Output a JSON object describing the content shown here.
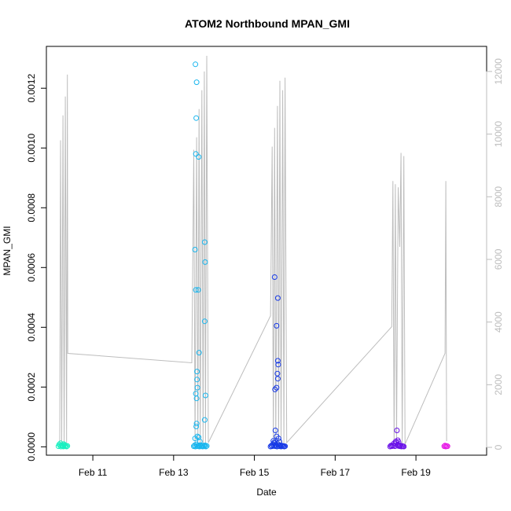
{
  "chart_data": {
    "type": "scatter",
    "title": "ATOM2 Northbound MPAN_GMI",
    "xlabel": "Date",
    "ylabel": "MPAN_GMI",
    "x_unit": "days",
    "xlim": [
      9.85,
      20.75
    ],
    "x_ticks": [
      {
        "x": 11,
        "label": "Feb 11"
      },
      {
        "x": 13,
        "label": "Feb 13"
      },
      {
        "x": 15,
        "label": "Feb 15"
      },
      {
        "x": 17,
        "label": "Feb 17"
      },
      {
        "x": 19,
        "label": "Feb 19"
      }
    ],
    "ylim": [
      -2.8e-05,
      0.00134
    ],
    "y_ticks": [
      0.0,
      0.0002,
      0.0004,
      0.0006,
      0.0008,
      0.001,
      0.0012
    ],
    "y_tick_labels": [
      "0.0000",
      "0.0002",
      "0.0004",
      "0.0006",
      "0.0008",
      "0.0010",
      "0.0012"
    ],
    "y2lim": [
      -250,
      12800
    ],
    "y2_ticks": [
      0,
      2000,
      4000,
      6000,
      8000,
      10000,
      12000
    ],
    "y2_tick_labels": [
      "0",
      "2000",
      "4000",
      "6000",
      "8000",
      "10000",
      "12000"
    ],
    "line_series": {
      "color": "#bdbdbd",
      "points": [
        [
          10.18,
          100
        ],
        [
          10.2,
          9800
        ],
        [
          10.23,
          100
        ],
        [
          10.26,
          10600
        ],
        [
          10.29,
          100
        ],
        [
          10.32,
          11200
        ],
        [
          10.35,
          100
        ],
        [
          10.37,
          11900
        ],
        [
          10.38,
          3000
        ],
        [
          13.45,
          2700
        ],
        [
          13.5,
          9500
        ],
        [
          13.53,
          100
        ],
        [
          13.57,
          9900
        ],
        [
          13.6,
          100
        ],
        [
          13.63,
          10800
        ],
        [
          13.66,
          100
        ],
        [
          13.7,
          11400
        ],
        [
          13.73,
          100
        ],
        [
          13.76,
          12000
        ],
        [
          13.79,
          100
        ],
        [
          13.82,
          12500
        ],
        [
          13.86,
          150
        ],
        [
          15.4,
          4200
        ],
        [
          15.44,
          9600
        ],
        [
          15.47,
          100
        ],
        [
          15.5,
          10200
        ],
        [
          15.53,
          100
        ],
        [
          15.57,
          10900
        ],
        [
          15.6,
          100
        ],
        [
          15.63,
          11700
        ],
        [
          15.66,
          100
        ],
        [
          15.7,
          11400
        ],
        [
          15.73,
          100
        ],
        [
          15.76,
          11800
        ],
        [
          15.8,
          150
        ],
        [
          18.4,
          3850
        ],
        [
          18.43,
          8500
        ],
        [
          18.46,
          100
        ],
        [
          18.49,
          8400
        ],
        [
          18.52,
          100
        ],
        [
          18.56,
          8300
        ],
        [
          18.6,
          6400
        ],
        [
          18.63,
          9400
        ],
        [
          18.66,
          100
        ],
        [
          18.7,
          9300
        ],
        [
          18.73,
          100
        ],
        [
          19.72,
          3000
        ],
        [
          19.74,
          8500
        ],
        [
          19.76,
          200
        ]
      ]
    },
    "point_series": [
      {
        "color": "#19f0c0",
        "points": [
          [
            10.15,
            2e-06
          ],
          [
            10.17,
            8e-06
          ],
          [
            10.19,
            4e-06
          ],
          [
            10.21,
            1e-06
          ],
          [
            10.23,
            5e-06
          ],
          [
            10.25,
            3e-06
          ],
          [
            10.27,
            1e-06
          ],
          [
            10.29,
            6e-06
          ],
          [
            10.31,
            2e-06
          ],
          [
            10.33,
            4e-06
          ],
          [
            10.35,
            1e-06
          ],
          [
            10.37,
            3e-06
          ],
          [
            10.2,
            1.2e-05
          ],
          [
            10.28,
            9e-06
          ]
        ]
      },
      {
        "color": "#1ab6ee",
        "points": [
          [
            13.5,
            2e-06
          ],
          [
            13.52,
            5e-06
          ],
          [
            13.54,
            1e-06
          ],
          [
            13.56,
            8e-06
          ],
          [
            13.58,
            3e-06
          ],
          [
            13.6,
            2e-06
          ],
          [
            13.62,
            4e-06
          ],
          [
            13.64,
            1e-06
          ],
          [
            13.66,
            6e-06
          ],
          [
            13.68,
            2e-06
          ],
          [
            13.7,
            3e-06
          ],
          [
            13.72,
            1e-06
          ],
          [
            13.74,
            4e-06
          ],
          [
            13.76,
            2e-06
          ],
          [
            13.78,
            5e-06
          ],
          [
            13.8,
            1e-06
          ],
          [
            13.82,
            3e-06
          ],
          [
            13.54,
            0.00128
          ],
          [
            13.57,
            0.00122
          ],
          [
            13.56,
            0.0011
          ],
          [
            13.55,
            0.00098
          ],
          [
            13.62,
            0.00097
          ],
          [
            13.53,
            0.00066
          ],
          [
            13.55,
            0.000525
          ],
          [
            13.61,
            0.000525
          ],
          [
            13.77,
            0.000685
          ],
          [
            13.78,
            0.000618
          ],
          [
            13.77,
            0.00042
          ],
          [
            13.63,
            0.000315
          ],
          [
            13.58,
            0.000252
          ],
          [
            13.58,
            0.000225
          ],
          [
            13.59,
            0.000198
          ],
          [
            13.55,
            0.000178
          ],
          [
            13.57,
            0.000162
          ],
          [
            13.79,
            0.000172
          ],
          [
            13.77,
            9e-05
          ],
          [
            13.57,
            7.8e-05
          ],
          [
            13.56,
            6.8e-05
          ],
          [
            13.59,
            3.5e-05
          ],
          [
            13.62,
            3.2e-05
          ],
          [
            13.53,
            2.8e-05
          ],
          [
            13.65,
            1.8e-05
          ]
        ]
      },
      {
        "color": "#1739e6",
        "points": [
          [
            15.4,
            1e-06
          ],
          [
            15.42,
            4e-06
          ],
          [
            15.44,
            2e-06
          ],
          [
            15.46,
            8e-06
          ],
          [
            15.48,
            3e-06
          ],
          [
            15.5,
            1.2e-05
          ],
          [
            15.52,
            2e-06
          ],
          [
            15.54,
            6e-06
          ],
          [
            15.56,
            1e-06
          ],
          [
            15.58,
            9e-06
          ],
          [
            15.6,
            3e-06
          ],
          [
            15.62,
            2e-06
          ],
          [
            15.64,
            5e-06
          ],
          [
            15.66,
            1e-06
          ],
          [
            15.68,
            4e-06
          ],
          [
            15.7,
            2e-06
          ],
          [
            15.72,
            3e-06
          ],
          [
            15.74,
            1e-06
          ],
          [
            15.76,
            2e-06
          ],
          [
            15.5,
            0.000568
          ],
          [
            15.58,
            0.000498
          ],
          [
            15.55,
            0.000405
          ],
          [
            15.58,
            0.000288
          ],
          [
            15.59,
            0.000275
          ],
          [
            15.57,
            0.000245
          ],
          [
            15.58,
            0.000228
          ],
          [
            15.55,
            0.000198
          ],
          [
            15.51,
            0.000192
          ],
          [
            15.52,
            5.5e-05
          ],
          [
            15.6,
            2.8e-05
          ],
          [
            15.55,
            3.5e-05
          ],
          [
            15.47,
            2e-05
          ],
          [
            15.62,
            1.8e-05
          ],
          [
            15.49,
            1.5e-05
          ]
        ]
      },
      {
        "color": "#6a12e8",
        "points": [
          [
            18.36,
            1e-06
          ],
          [
            18.38,
            4e-06
          ],
          [
            18.4,
            2e-06
          ],
          [
            18.42,
            6e-06
          ],
          [
            18.44,
            3e-06
          ],
          [
            18.46,
            1.2e-05
          ],
          [
            18.48,
            2e-06
          ],
          [
            18.5,
            1.8e-05
          ],
          [
            18.52,
            1.5e-05
          ],
          [
            18.54,
            8e-06
          ],
          [
            18.56,
            3e-06
          ],
          [
            18.58,
            5e-06
          ],
          [
            18.6,
            2e-06
          ],
          [
            18.62,
            4e-06
          ],
          [
            18.64,
            1e-06
          ],
          [
            18.66,
            3e-06
          ],
          [
            18.68,
            2e-06
          ],
          [
            18.7,
            1e-06
          ],
          [
            18.53,
            5.5e-05
          ],
          [
            18.55,
            2.2e-05
          ],
          [
            18.57,
            1.6e-05
          ]
        ]
      },
      {
        "color": "#e617e6",
        "points": [
          [
            19.7,
            2e-06
          ],
          [
            19.72,
            4e-06
          ],
          [
            19.74,
            1e-06
          ],
          [
            19.76,
            3e-06
          ],
          [
            19.78,
            2e-06
          ]
        ]
      }
    ]
  }
}
